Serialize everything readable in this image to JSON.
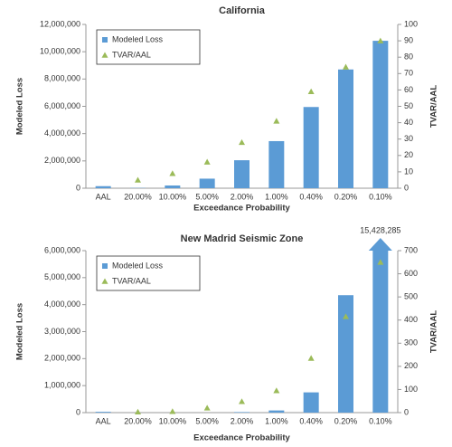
{
  "chart_data": [
    {
      "type": "bar",
      "title": "California",
      "xlabel": "Exceedance Probability",
      "ylabel": "Modeled Loss",
      "y2label": "TVAR/AAL",
      "categories": [
        "AAL",
        "20.00%",
        "10.00%",
        "5.00%",
        "2.00%",
        "1.00%",
        "0.40%",
        "0.20%",
        "0.10%"
      ],
      "series": [
        {
          "name": "Modeled Loss",
          "type": "bar",
          "color": "#5b9bd5",
          "values": [
            150000,
            20000,
            200000,
            700000,
            2050000,
            3450000,
            5950000,
            8700000,
            10800000
          ]
        },
        {
          "name": "TVAR/AAL",
          "type": "scatter",
          "axis": "y2",
          "color": "#9bbb59",
          "values": [
            null,
            5,
            9,
            16,
            28,
            41,
            59,
            74,
            90
          ]
        }
      ],
      "ylim": [
        0,
        12000000
      ],
      "yticks": [
        0,
        {
          "value": 2000000,
          "label": "2,000,000"
        },
        {
          "value": 4000000,
          "label": "4,000,000"
        },
        {
          "value": 6000000,
          "label": "6,000,000"
        },
        {
          "value": 8000000,
          "label": "8,000,000"
        },
        {
          "value": 10000000,
          "label": "10,000,000"
        },
        {
          "value": 12000000,
          "label": "12,000,000"
        }
      ],
      "y2lim": [
        0,
        100
      ],
      "y2ticks": [
        0,
        10,
        20,
        30,
        40,
        50,
        60,
        70,
        80,
        90,
        100
      ],
      "grid": false,
      "legend": "upper left"
    },
    {
      "type": "bar",
      "title": "New Madrid Seismic Zone",
      "xlabel": "Exceedance Probability",
      "ylabel": "Modeled Loss",
      "y2label": "TVAR/AAL",
      "categories": [
        "AAL",
        "20.00%",
        "10.00%",
        "5.00%",
        "2.00%",
        "1.00%",
        "0.40%",
        "0.20%",
        "0.10%"
      ],
      "series": [
        {
          "name": "Modeled Loss",
          "type": "bar",
          "color": "#5b9bd5",
          "values": [
            30000,
            0,
            0,
            0,
            20000,
            80000,
            750000,
            4350000,
            15428285
          ],
          "value_labels": [
            null,
            null,
            null,
            null,
            null,
            null,
            null,
            null,
            "15,428,285"
          ]
        },
        {
          "name": "TVAR/AAL",
          "type": "scatter",
          "axis": "y2",
          "color": "#9bbb59",
          "values": [
            null,
            3,
            5,
            20,
            48,
            95,
            235,
            415,
            650
          ]
        }
      ],
      "ylim": [
        0,
        6000000
      ],
      "yticks": [
        0,
        {
          "value": 1000000,
          "label": "1,000,000"
        },
        {
          "value": 2000000,
          "label": "2,000,000"
        },
        {
          "value": 3000000,
          "label": "3,000,000"
        },
        {
          "value": 4000000,
          "label": "4,000,000"
        },
        {
          "value": 5000000,
          "label": "5,000,000"
        },
        {
          "value": 6000000,
          "label": "6,000,000"
        }
      ],
      "y2lim": [
        0,
        700
      ],
      "y2ticks": [
        0,
        100,
        200,
        300,
        400,
        500,
        600,
        700
      ],
      "grid": false,
      "legend": "upper left"
    }
  ]
}
